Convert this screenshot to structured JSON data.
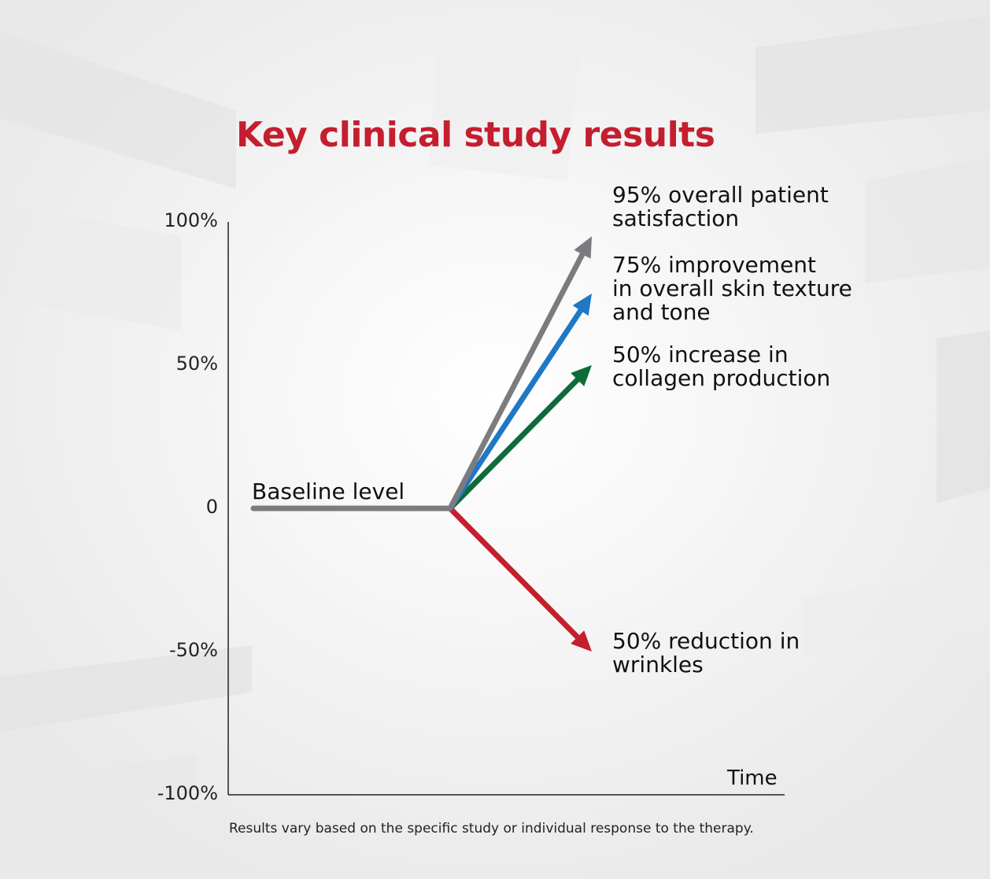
{
  "colors": {
    "title": "#c41e2f",
    "gray": "#7c7c80",
    "blue": "#1f78c4",
    "green": "#0f6b38",
    "red": "#c41e2f"
  },
  "chart_data": {
    "type": "line",
    "title": "Key clinical study results",
    "xlabel": "Time",
    "ylabel": "",
    "ylim": [
      -100,
      100
    ],
    "yticks": [
      {
        "value": 100,
        "label": "100%"
      },
      {
        "value": 50,
        "label": "50%"
      },
      {
        "value": 0,
        "label": "0"
      },
      {
        "value": -50,
        "label": "-50%"
      },
      {
        "value": -100,
        "label": "-100%"
      }
    ],
    "baseline": {
      "label": "Baseline level",
      "value": 0,
      "color": "#7c7c80"
    },
    "series": [
      {
        "value": 95,
        "color": "#7c7c80",
        "annotation": [
          "95% overall patient",
          "satisfaction"
        ]
      },
      {
        "value": 75,
        "color": "#1f78c4",
        "annotation": [
          "75% improvement",
          "in overall skin texture",
          "and tone"
        ]
      },
      {
        "value": 50,
        "color": "#0f6b38",
        "annotation": [
          "50% increase in",
          "collagen production"
        ]
      },
      {
        "value": -50,
        "color": "#c41e2f",
        "annotation": [
          "50% reduction in",
          "wrinkles"
        ]
      }
    ],
    "footnote": "Results vary based on the specific study or individual response to the therapy."
  }
}
